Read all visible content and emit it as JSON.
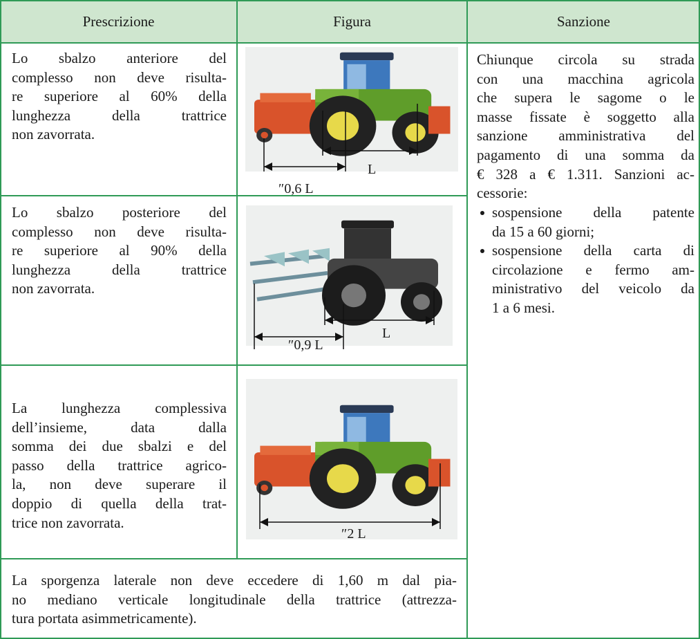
{
  "header": {
    "columns": [
      "Prescrizione",
      "Figura",
      "Sanzione"
    ]
  },
  "rows": [
    {
      "prescrizione": [
        "Lo sbalzo anteriore del",
        "complesso non deve risulta-",
        "re superiore al 60% della",
        "lunghezza della trattrice",
        "non zavorrata."
      ],
      "figure_labels": [
        "″0,6 L",
        "L"
      ]
    },
    {
      "prescrizione": [
        "Lo sbalzo posteriore del",
        "complesso non deve risulta-",
        "re superiore al 90% della",
        "lunghezza della trattrice",
        "non zavorrata."
      ],
      "figure_labels": [
        "″0,9 L",
        "L"
      ]
    },
    {
      "prescrizione": [
        "La lunghezza complessiva",
        "dell’insieme, data dalla",
        "somma dei due sbalzi e del",
        "passo della trattrice agrico-",
        "la, non deve superare il",
        "doppio di quella della trat-",
        "trice non zavorrata."
      ],
      "figure_labels": [
        "″2 L"
      ]
    }
  ],
  "footer_note": [
    "La sporgenza laterale non deve eccedere di 1,60 m dal pia-",
    "no mediano verticale longitudinale della trattrice (attrezza-",
    "tura portata asimmetricamente)."
  ],
  "sanzione": {
    "text": [
      "Chiunque circola su strada",
      "con una macchina agricola",
      "che supera le sagome o le",
      "masse fissate è soggetto alla",
      "sanzione amministrativa del",
      "pagamento di una somma da",
      "€ 328 a € 1.311. Sanzioni ac-",
      "cessorie:"
    ],
    "bullets": [
      [
        "sospensione della patente",
        "da 15 a 60 giorni;"
      ],
      [
        "sospensione della carta di",
        "circolazione e fermo am-",
        "ministrativo del veicolo da",
        "1 a 6 mesi."
      ]
    ]
  }
}
